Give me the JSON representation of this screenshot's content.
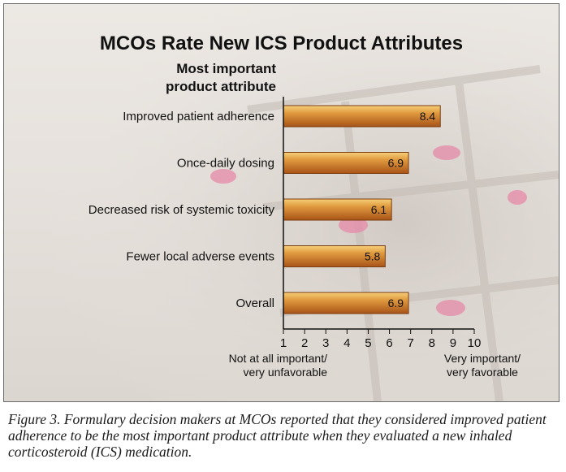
{
  "chart_data": {
    "type": "bar",
    "orientation": "horizontal",
    "title": "MCOs Rate New ICS Product Attributes",
    "ylabel_line1": "Most important",
    "ylabel_line2": "product attribute",
    "categories": [
      "Improved patient adherence",
      "Once-daily dosing",
      "Decreased risk of systemic toxicity",
      "Fewer local adverse events",
      "Overall"
    ],
    "values": [
      8.4,
      6.9,
      6.1,
      5.8,
      6.9
    ],
    "value_labels": [
      "8.4",
      "6.9",
      "6.1",
      "5.8",
      "6.9"
    ],
    "xlim": [
      1,
      10
    ],
    "xticks": [
      "1",
      "2",
      "3",
      "4",
      "5",
      "6",
      "7",
      "8",
      "9",
      "10"
    ],
    "x_low_label_line1": "Not at all important/",
    "x_low_label_line2": "very unfavorable",
    "x_high_label_line1": "Very important/",
    "x_high_label_line2": "very favorable",
    "grid": false,
    "bar_color": "#e09a3e",
    "bar_edge_color": "#7a3d10"
  },
  "caption": "Figure 3. Formulary decision makers at MCOs reported that they considered improved patient adherence to be the most important product attribute when they evaluated a new inhaled corticosteroid (ICS) medication."
}
